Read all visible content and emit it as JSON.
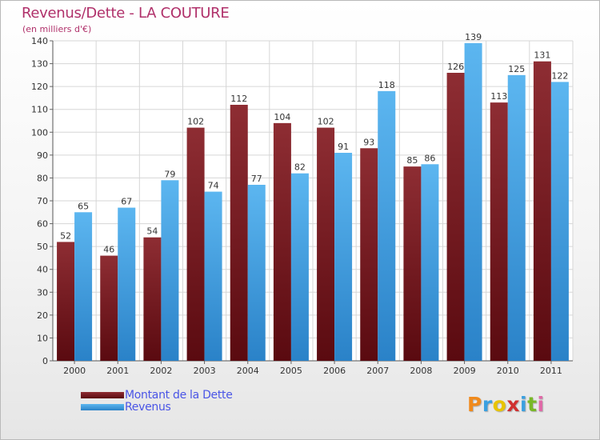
{
  "chart_data": {
    "type": "bar",
    "title": "Revenus/Dette - LA COUTURE",
    "subtitle": "(en milliers d'€)",
    "categories": [
      "2000",
      "2001",
      "2002",
      "2003",
      "2004",
      "2005",
      "2006",
      "2007",
      "2008",
      "2009",
      "2010",
      "2011"
    ],
    "series": [
      {
        "name": "Montant de la Dette",
        "color": "#7a1a1f",
        "values": [
          52,
          46,
          54,
          102,
          112,
          104,
          102,
          93,
          85,
          126,
          113,
          131
        ]
      },
      {
        "name": "Revenus",
        "color": "#3a9ce0",
        "values": [
          65,
          67,
          79,
          74,
          77,
          82,
          91,
          118,
          86,
          139,
          125,
          122
        ]
      }
    ],
    "ylim": [
      0,
      140
    ],
    "yticks": [
      0,
      10,
      20,
      30,
      40,
      50,
      60,
      70,
      80,
      90,
      100,
      110,
      120,
      130,
      140
    ],
    "grid": true,
    "legend": "bottom-left",
    "xlabel": "",
    "ylabel": ""
  },
  "brand": {
    "letters": [
      "P",
      "r",
      "o",
      "x",
      "i",
      "t",
      "i"
    ],
    "colors": [
      "#f08a1c",
      "#3aa0e0",
      "#e8c400",
      "#d03030",
      "#3aa0e0",
      "#79b828",
      "#e06aa8"
    ]
  }
}
